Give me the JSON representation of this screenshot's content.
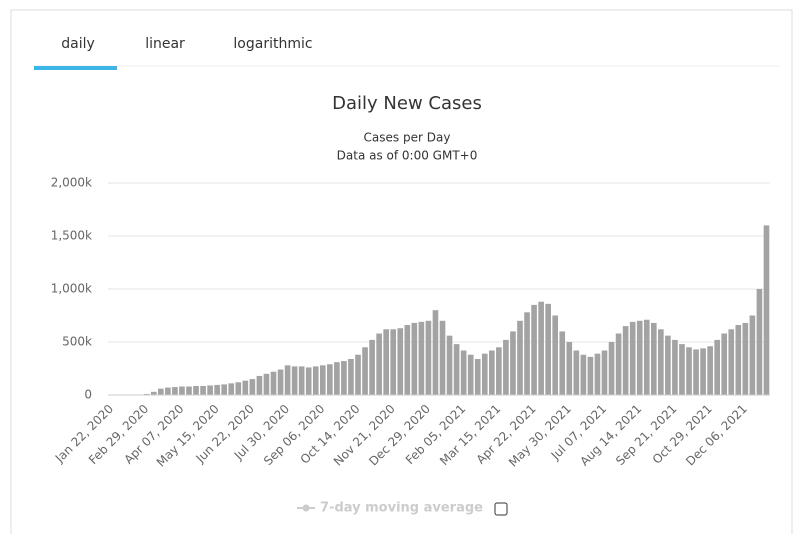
{
  "tabs": [
    "daily",
    "linear",
    "logarithmic"
  ],
  "active_tab": 0,
  "chart_data": {
    "type": "bar",
    "title": "Daily New Cases",
    "subtitle": [
      "Cases per Day",
      "Data as of 0:00 GMT+0"
    ],
    "color": "#a3a3a3",
    "grid": true,
    "categories": [
      "Jan 22, 2020",
      null,
      null,
      null,
      null,
      "Feb 29, 2020",
      null,
      null,
      null,
      null,
      "Apr 07, 2020",
      null,
      null,
      null,
      null,
      "May 15, 2020",
      null,
      null,
      null,
      null,
      "Jun 22, 2020",
      null,
      null,
      null,
      null,
      "Jul 30, 2020",
      null,
      null,
      null,
      null,
      "Sep 06, 2020",
      null,
      null,
      null,
      null,
      "Oct 14, 2020",
      null,
      null,
      null,
      null,
      "Nov 21, 2020",
      null,
      null,
      null,
      null,
      "Dec 29, 2020",
      null,
      null,
      null,
      null,
      "Feb 05, 2021",
      null,
      null,
      null,
      null,
      "Mar 15, 2021",
      null,
      null,
      null,
      null,
      "Apr 22, 2021",
      null,
      null,
      null,
      null,
      "May 30, 2021",
      null,
      null,
      null,
      null,
      "Jul 07, 2021",
      null,
      null,
      null,
      null,
      "Aug 14, 2021",
      null,
      null,
      null,
      null,
      "Sep 21, 2021",
      null,
      null,
      null,
      null,
      "Oct 29, 2021",
      null,
      null,
      null,
      null,
      "Dec 06, 2021",
      null,
      null,
      null
    ],
    "values": [
      0,
      2000,
      2000,
      2000,
      3000,
      10000,
      30000,
      60000,
      70000,
      75000,
      80000,
      80000,
      85000,
      85000,
      90000,
      95000,
      100000,
      110000,
      120000,
      135000,
      150000,
      180000,
      200000,
      220000,
      240000,
      280000,
      270000,
      270000,
      260000,
      270000,
      280000,
      290000,
      310000,
      320000,
      340000,
      380000,
      450000,
      520000,
      580000,
      620000,
      620000,
      630000,
      660000,
      680000,
      690000,
      700000,
      800000,
      700000,
      560000,
      480000,
      420000,
      380000,
      340000,
      390000,
      420000,
      450000,
      520000,
      600000,
      700000,
      780000,
      850000,
      880000,
      860000,
      750000,
      600000,
      500000,
      420000,
      380000,
      360000,
      390000,
      420000,
      500000,
      580000,
      650000,
      690000,
      700000,
      710000,
      680000,
      620000,
      560000,
      520000,
      480000,
      450000,
      430000,
      440000,
      460000,
      520000,
      580000,
      620000,
      660000,
      680000,
      750000,
      1000000,
      1600000
    ],
    "ylim": [
      0,
      2000000
    ],
    "yticks": [
      {
        "value": 0,
        "label": "0"
      },
      {
        "value": 500000,
        "label": "500k"
      },
      {
        "value": 1000000,
        "label": "1,000k"
      },
      {
        "value": 1500000,
        "label": "1,500k"
      },
      {
        "value": 2000000,
        "label": "2,000k"
      }
    ],
    "legend_items": [
      "7-day moving average"
    ]
  }
}
